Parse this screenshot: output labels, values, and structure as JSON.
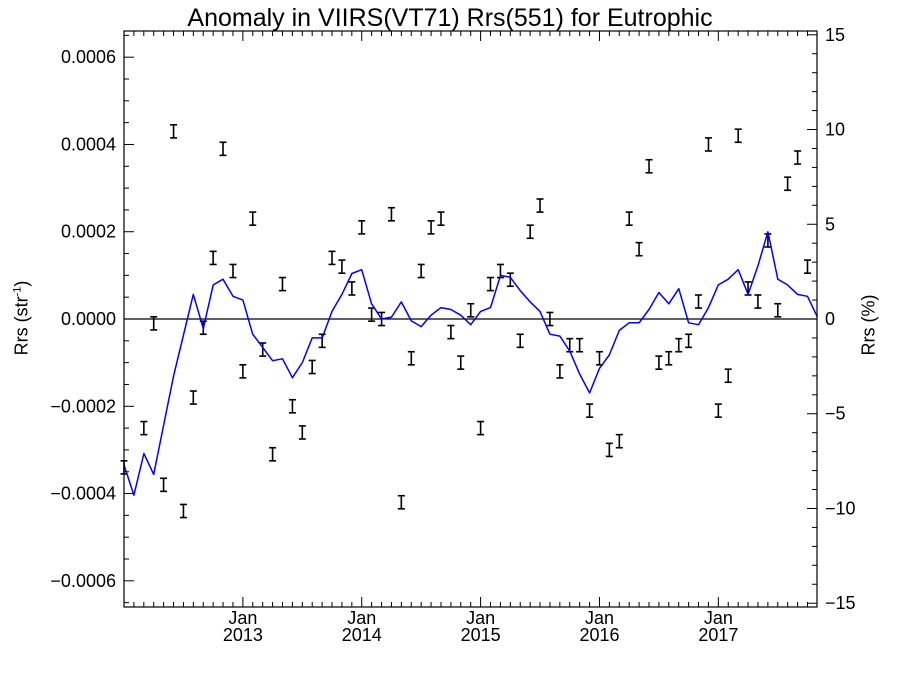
{
  "chart_data": {
    "type": "line",
    "title": "Anomaly in VIIRS(VT71) Rrs(551) for Eutrophic",
    "ylabel_left_main": "Rrs (str",
    "ylabel_left_sup": "-1",
    "ylabel_left_close": ")",
    "ylabel_right": "Rrs (%)",
    "xlim": [
      2012.0,
      2017.83
    ],
    "ylim_left": [
      -0.00066,
      0.00066
    ],
    "ylim_right": [
      -15.2,
      15.2
    ],
    "yticks_left": [
      {
        "value": 0.0006,
        "label": "0.0006"
      },
      {
        "value": 0.0004,
        "label": "0.0004"
      },
      {
        "value": 0.0002,
        "label": "0.0002"
      },
      {
        "value": 0.0,
        "label": "0.0000"
      },
      {
        "value": -0.0002,
        "label": "−0.0002"
      },
      {
        "value": -0.0004,
        "label": "−0.0004"
      },
      {
        "value": -0.0006,
        "label": "−0.0006"
      }
    ],
    "yticks_right": [
      {
        "value": 15,
        "label": "15"
      },
      {
        "value": 10,
        "label": "10"
      },
      {
        "value": 5,
        "label": "5"
      },
      {
        "value": 0,
        "label": "0"
      },
      {
        "value": -5,
        "label": "−5"
      },
      {
        "value": -10,
        "label": "−10"
      },
      {
        "value": -15,
        "label": "−15"
      }
    ],
    "xticks": [
      {
        "value": 2013.0,
        "month": "Jan",
        "year": "2013"
      },
      {
        "value": 2014.0,
        "month": "Jan",
        "year": "2014"
      },
      {
        "value": 2015.0,
        "month": "Jan",
        "year": "2015"
      },
      {
        "value": 2016.0,
        "month": "Jan",
        "year": "2016"
      },
      {
        "value": 2017.0,
        "month": "Jan",
        "year": "2017"
      }
    ],
    "zero_line": true,
    "series": [
      {
        "kind": "percent-anomaly-line",
        "axis": "right",
        "color": "#0000ff",
        "x": [
          2012.0,
          2012.083,
          2012.167,
          2012.25,
          2012.417,
          2012.583,
          2012.667,
          2012.75,
          2012.833,
          2012.917,
          2013.0,
          2013.083,
          2013.25,
          2013.333,
          2013.417,
          2013.5,
          2013.583,
          2013.667,
          2013.75,
          2013.833,
          2013.917,
          2014.0,
          2014.083,
          2014.167,
          2014.25,
          2014.333,
          2014.417,
          2014.5,
          2014.583,
          2014.667,
          2014.75,
          2014.833,
          2014.917,
          2015.0,
          2015.083,
          2015.167,
          2015.25,
          2015.333,
          2015.417,
          2015.5,
          2015.583,
          2015.667,
          2015.75,
          2015.833,
          2015.917,
          2016.0,
          2016.083,
          2016.167,
          2016.25,
          2016.333,
          2016.417,
          2016.5,
          2016.583,
          2016.667,
          2016.75,
          2016.833,
          2016.917,
          2017.0,
          2017.083,
          2017.167,
          2017.25,
          2017.333,
          2017.417,
          2017.5,
          2017.583,
          2017.667,
          2017.75,
          2017.833
        ],
        "y": [
          -7.7,
          -9.3,
          -7.1,
          -8.2,
          -3.0,
          1.3,
          -0.5,
          1.8,
          2.1,
          1.2,
          1.0,
          -0.8,
          -2.2,
          -2.1,
          -3.1,
          -2.3,
          -1.0,
          -1.0,
          0.4,
          1.3,
          2.4,
          2.6,
          0.8,
          0.0,
          0.1,
          0.9,
          -0.1,
          -0.4,
          0.2,
          0.6,
          0.5,
          0.2,
          -0.3,
          0.4,
          0.6,
          2.3,
          2.2,
          1.5,
          0.9,
          0.4,
          -0.8,
          -0.9,
          -1.7,
          -2.9,
          -3.9,
          -2.6,
          -1.9,
          -0.6,
          -0.2,
          -0.2,
          0.5,
          1.4,
          0.8,
          1.6,
          -0.2,
          -0.3,
          0.6,
          1.8,
          2.1,
          2.6,
          1.3,
          2.8,
          4.6,
          2.1,
          1.8,
          1.3,
          1.2,
          0.1
        ]
      },
      {
        "kind": "rrs-anomaly-errorbars",
        "axis": "left",
        "color": "#000000",
        "x": [
          2012.0,
          2012.167,
          2012.25,
          2012.333,
          2012.417,
          2012.5,
          2012.583,
          2012.667,
          2012.75,
          2012.833,
          2012.917,
          2013.0,
          2013.083,
          2013.167,
          2013.25,
          2013.333,
          2013.417,
          2013.5,
          2013.583,
          2013.667,
          2013.75,
          2013.833,
          2013.917,
          2014.0,
          2014.083,
          2014.167,
          2014.25,
          2014.333,
          2014.417,
          2014.5,
          2014.583,
          2014.667,
          2014.75,
          2014.833,
          2014.917,
          2015.0,
          2015.083,
          2015.167,
          2015.25,
          2015.333,
          2015.417,
          2015.5,
          2015.583,
          2015.667,
          2015.75,
          2015.833,
          2015.917,
          2016.0,
          2016.083,
          2016.167,
          2016.25,
          2016.333,
          2016.417,
          2016.5,
          2016.583,
          2016.667,
          2016.75,
          2016.833,
          2016.917,
          2017.0,
          2017.083,
          2017.167,
          2017.25,
          2017.333,
          2017.417,
          2017.5,
          2017.583,
          2017.667,
          2017.75
        ],
        "y": [
          -0.00034,
          -0.00025,
          -1e-05,
          -0.00038,
          0.00043,
          -0.00044,
          -0.00018,
          -2e-05,
          0.00014,
          0.00039,
          0.00011,
          -0.00012,
          0.00023,
          -7e-05,
          -0.00031,
          8e-05,
          -0.0002,
          -0.00026,
          -0.00011,
          -5e-05,
          0.00014,
          0.00012,
          7e-05,
          0.00021,
          1e-05,
          0.0,
          0.00024,
          -0.00042,
          -9e-05,
          0.00011,
          0.00021,
          0.00023,
          -3e-05,
          -0.0001,
          2e-05,
          -0.00025,
          8e-05,
          0.00011,
          9e-05,
          -5e-05,
          0.0002,
          0.00026,
          0.0,
          -0.00012,
          -6e-05,
          -6e-05,
          -0.00021,
          -9e-05,
          -0.0003,
          -0.00028,
          0.00023,
          0.00016,
          0.00035,
          -0.0001,
          -9e-05,
          -6e-05,
          -5e-05,
          4e-05,
          0.0004,
          -0.00021,
          -0.00013,
          0.00042,
          7e-05,
          4e-05,
          0.00018,
          2e-05,
          0.00031,
          0.00037,
          0.00012
        ],
        "err": 1.5e-05
      }
    ]
  }
}
